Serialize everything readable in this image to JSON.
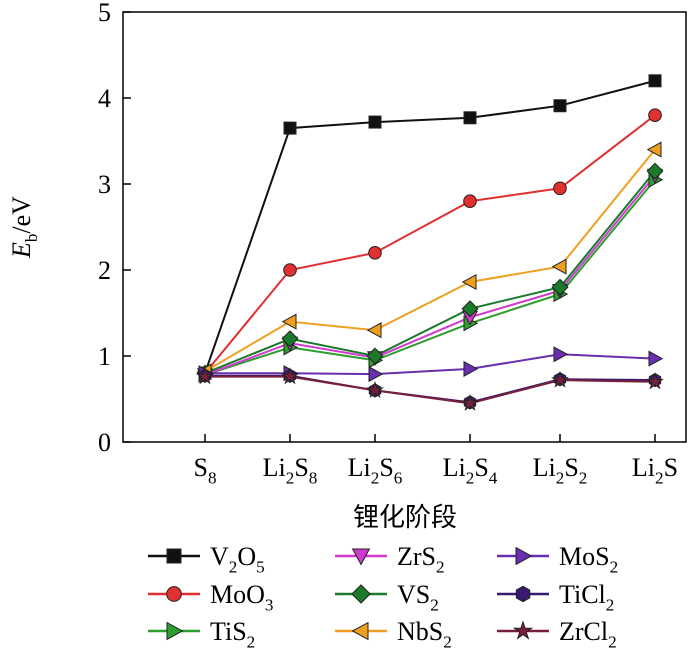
{
  "chart_data": {
    "type": "line",
    "title": "",
    "xlabel": "锂化阶段",
    "ylabel_main": "E",
    "ylabel_sub": "b",
    "ylabel_unit": "/eV",
    "ylim": [
      0,
      5
    ],
    "yticks": [
      "0",
      "1",
      "2",
      "3",
      "4",
      "5"
    ],
    "categories": [
      {
        "main": "S",
        "parts": [
          [
            "S",
            "n"
          ],
          [
            "8",
            "s"
          ]
        ]
      },
      {
        "main": "Li2S8",
        "parts": [
          [
            "Li",
            "n"
          ],
          [
            "2",
            "s"
          ],
          [
            "S",
            "n"
          ],
          [
            "8",
            "s"
          ]
        ]
      },
      {
        "main": "Li2S6",
        "parts": [
          [
            "Li",
            "n"
          ],
          [
            "2",
            "s"
          ],
          [
            "S",
            "n"
          ],
          [
            "6",
            "s"
          ]
        ]
      },
      {
        "main": "Li2S4",
        "parts": [
          [
            "Li",
            "n"
          ],
          [
            "2",
            "s"
          ],
          [
            "S",
            "n"
          ],
          [
            "4",
            "s"
          ]
        ]
      },
      {
        "main": "Li2S2",
        "parts": [
          [
            "Li",
            "n"
          ],
          [
            "2",
            "s"
          ],
          [
            "S",
            "n"
          ],
          [
            "2",
            "s"
          ]
        ]
      },
      {
        "main": "Li2S",
        "parts": [
          [
            "Li",
            "n"
          ],
          [
            "2",
            "s"
          ],
          [
            "S",
            "n"
          ]
        ]
      }
    ],
    "series": [
      {
        "name": "V2O5",
        "label": [
          [
            "V",
            "n"
          ],
          [
            "2",
            "s"
          ],
          [
            "O",
            "n"
          ],
          [
            "5",
            "s"
          ]
        ],
        "color": "#111111",
        "marker": "square",
        "values": [
          0.8,
          3.65,
          3.72,
          3.77,
          3.91,
          4.2
        ]
      },
      {
        "name": "MoO3",
        "label": [
          [
            "MoO",
            "n"
          ],
          [
            "3",
            "s"
          ]
        ],
        "color": "#e03030",
        "marker": "circle",
        "values": [
          0.8,
          2.0,
          2.2,
          2.8,
          2.95,
          3.8
        ]
      },
      {
        "name": "TiS2",
        "label": [
          [
            "TiS",
            "n"
          ],
          [
            "2",
            "s"
          ]
        ],
        "color": "#2e9e2e",
        "marker": "tri-right",
        "values": [
          0.78,
          1.1,
          0.95,
          1.38,
          1.72,
          3.05
        ]
      },
      {
        "name": "ZrS2",
        "label": [
          [
            "ZrS",
            "n"
          ],
          [
            "2",
            "s"
          ]
        ],
        "color": "#d03ad0",
        "marker": "tri-down",
        "values": [
          0.78,
          1.15,
          0.98,
          1.45,
          1.76,
          3.1
        ]
      },
      {
        "name": "VS2",
        "label": [
          [
            "VS",
            "n"
          ],
          [
            "2",
            "s"
          ]
        ],
        "color": "#1a7a2a",
        "marker": "diamond",
        "values": [
          0.8,
          1.2,
          1.0,
          1.55,
          1.8,
          3.15
        ]
      },
      {
        "name": "NbS2",
        "label": [
          [
            "NbS",
            "n"
          ],
          [
            "2",
            "s"
          ]
        ],
        "color": "#f0a020",
        "marker": "tri-left",
        "values": [
          0.82,
          1.4,
          1.3,
          1.86,
          2.04,
          3.4
        ]
      },
      {
        "name": "MoS2",
        "label": [
          [
            "MoS",
            "n"
          ],
          [
            "2",
            "s"
          ]
        ],
        "color": "#6a2fb0",
        "marker": "tri-right",
        "values": [
          0.8,
          0.8,
          0.79,
          0.85,
          1.02,
          0.97
        ]
      },
      {
        "name": "TiCl2",
        "label": [
          [
            "TiCl",
            "n"
          ],
          [
            "2",
            "s"
          ]
        ],
        "color": "#3a1a70",
        "marker": "hexagon",
        "values": [
          0.77,
          0.77,
          0.6,
          0.46,
          0.73,
          0.72
        ]
      },
      {
        "name": "ZrCl2",
        "label": [
          [
            "ZrCl",
            "n"
          ],
          [
            "2",
            "s"
          ]
        ],
        "color": "#7a1f3a",
        "marker": "star",
        "values": [
          0.76,
          0.76,
          0.6,
          0.45,
          0.72,
          0.7
        ]
      }
    ],
    "legend_order": [
      "V2O5",
      "ZrS2",
      "MoS2",
      "MoO3",
      "VS2",
      "TiCl2",
      "TiS2",
      "NbS2",
      "ZrCl2"
    ],
    "legend_position": "bottom"
  }
}
